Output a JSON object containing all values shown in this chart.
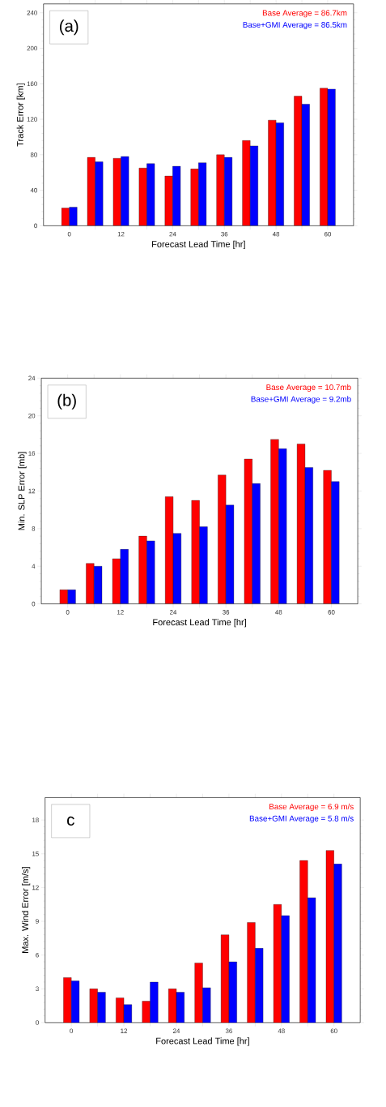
{
  "chart_data": [
    {
      "type": "bar",
      "x": [
        0,
        6,
        12,
        18,
        24,
        30,
        36,
        42,
        48,
        54,
        60
      ],
      "xlim": [
        -6,
        66
      ],
      "xticks": [
        0,
        {
          "value": 6,
          "label": null
        },
        12,
        {
          "value": 18,
          "label": null
        },
        24,
        {
          "value": 30,
          "label": null
        },
        36,
        {
          "value": 42,
          "label": null
        },
        48,
        {
          "value": 54,
          "label": null
        },
        60
      ],
      "ylim": [
        0,
        250
      ],
      "yticks": [
        0,
        40,
        80,
        120,
        160,
        200,
        240
      ],
      "xlabel": "Forecast Lead Time [hr]",
      "ylabel": "Track Error [km]",
      "legend": "top right",
      "annotations": [
        "(a)"
      ],
      "series": [
        {
          "name": "Base Average =  86.7km",
          "color": "#ff0000",
          "values": [
            20,
            77,
            76,
            65,
            56,
            64,
            80,
            96,
            119,
            146,
            155
          ]
        },
        {
          "name": "Base+GMI Average =  86.5km",
          "color": "#0000ff",
          "values": [
            21,
            72,
            78,
            70,
            67,
            71,
            77,
            90,
            116,
            137,
            154
          ]
        }
      ]
    },
    {
      "type": "bar",
      "x": [
        0,
        6,
        12,
        18,
        24,
        30,
        36,
        42,
        48,
        54,
        60
      ],
      "xlim": [
        -6,
        66
      ],
      "xticks": [
        0,
        {
          "value": 6,
          "label": null
        },
        12,
        {
          "value": 18,
          "label": null
        },
        24,
        {
          "value": 30,
          "label": null
        },
        36,
        {
          "value": 42,
          "label": null
        },
        48,
        {
          "value": 54,
          "label": null
        },
        60
      ],
      "ylim": [
        0,
        24
      ],
      "yticks": [
        0,
        4,
        8,
        12,
        16,
        20,
        24
      ],
      "xlabel": "Forecast Lead Time [hr]",
      "ylabel": "Min. SLP Error [mb]",
      "legend": "top right",
      "annotations": [
        "(b)"
      ],
      "series": [
        {
          "name": "Base Average =  10.7mb",
          "color": "#ff0000",
          "values": [
            1.5,
            4.3,
            4.8,
            7.2,
            11.4,
            11.0,
            13.7,
            15.4,
            17.5,
            17.0,
            14.2
          ]
        },
        {
          "name": "Base+GMI Average =   9.2mb",
          "color": "#0000ff",
          "values": [
            1.5,
            4.0,
            5.8,
            6.7,
            7.5,
            8.2,
            10.5,
            12.8,
            16.5,
            14.5,
            13.0
          ]
        }
      ]
    },
    {
      "type": "bar",
      "x": [
        0,
        6,
        12,
        18,
        24,
        30,
        36,
        42,
        48,
        54,
        60
      ],
      "xlim": [
        -6,
        66
      ],
      "xticks": [
        0,
        {
          "value": 6,
          "label": null
        },
        12,
        {
          "value": 18,
          "label": null
        },
        24,
        {
          "value": 30,
          "label": null
        },
        36,
        {
          "value": 42,
          "label": null
        },
        48,
        {
          "value": 54,
          "label": null
        },
        60
      ],
      "ylim": [
        0,
        20
      ],
      "yticks": [
        0,
        3,
        6,
        9,
        12,
        15,
        18
      ],
      "xlabel": "Forecast Lead Time [hr]",
      "ylabel": "Max. Wind Error [m/s]",
      "legend": "top right",
      "annotations": [
        "c"
      ],
      "series": [
        {
          "name": "Base Average =   6.9 m/s",
          "color": "#ff0000",
          "values": [
            4.0,
            3.0,
            2.2,
            1.9,
            3.0,
            5.3,
            7.8,
            8.9,
            10.5,
            14.4,
            15.3
          ]
        },
        {
          "name": "Base+GMI Average =   5.8 m/s",
          "color": "#0000ff",
          "values": [
            3.7,
            2.7,
            1.6,
            3.6,
            2.7,
            3.1,
            5.4,
            6.6,
            9.5,
            11.1,
            14.1
          ]
        }
      ]
    }
  ]
}
